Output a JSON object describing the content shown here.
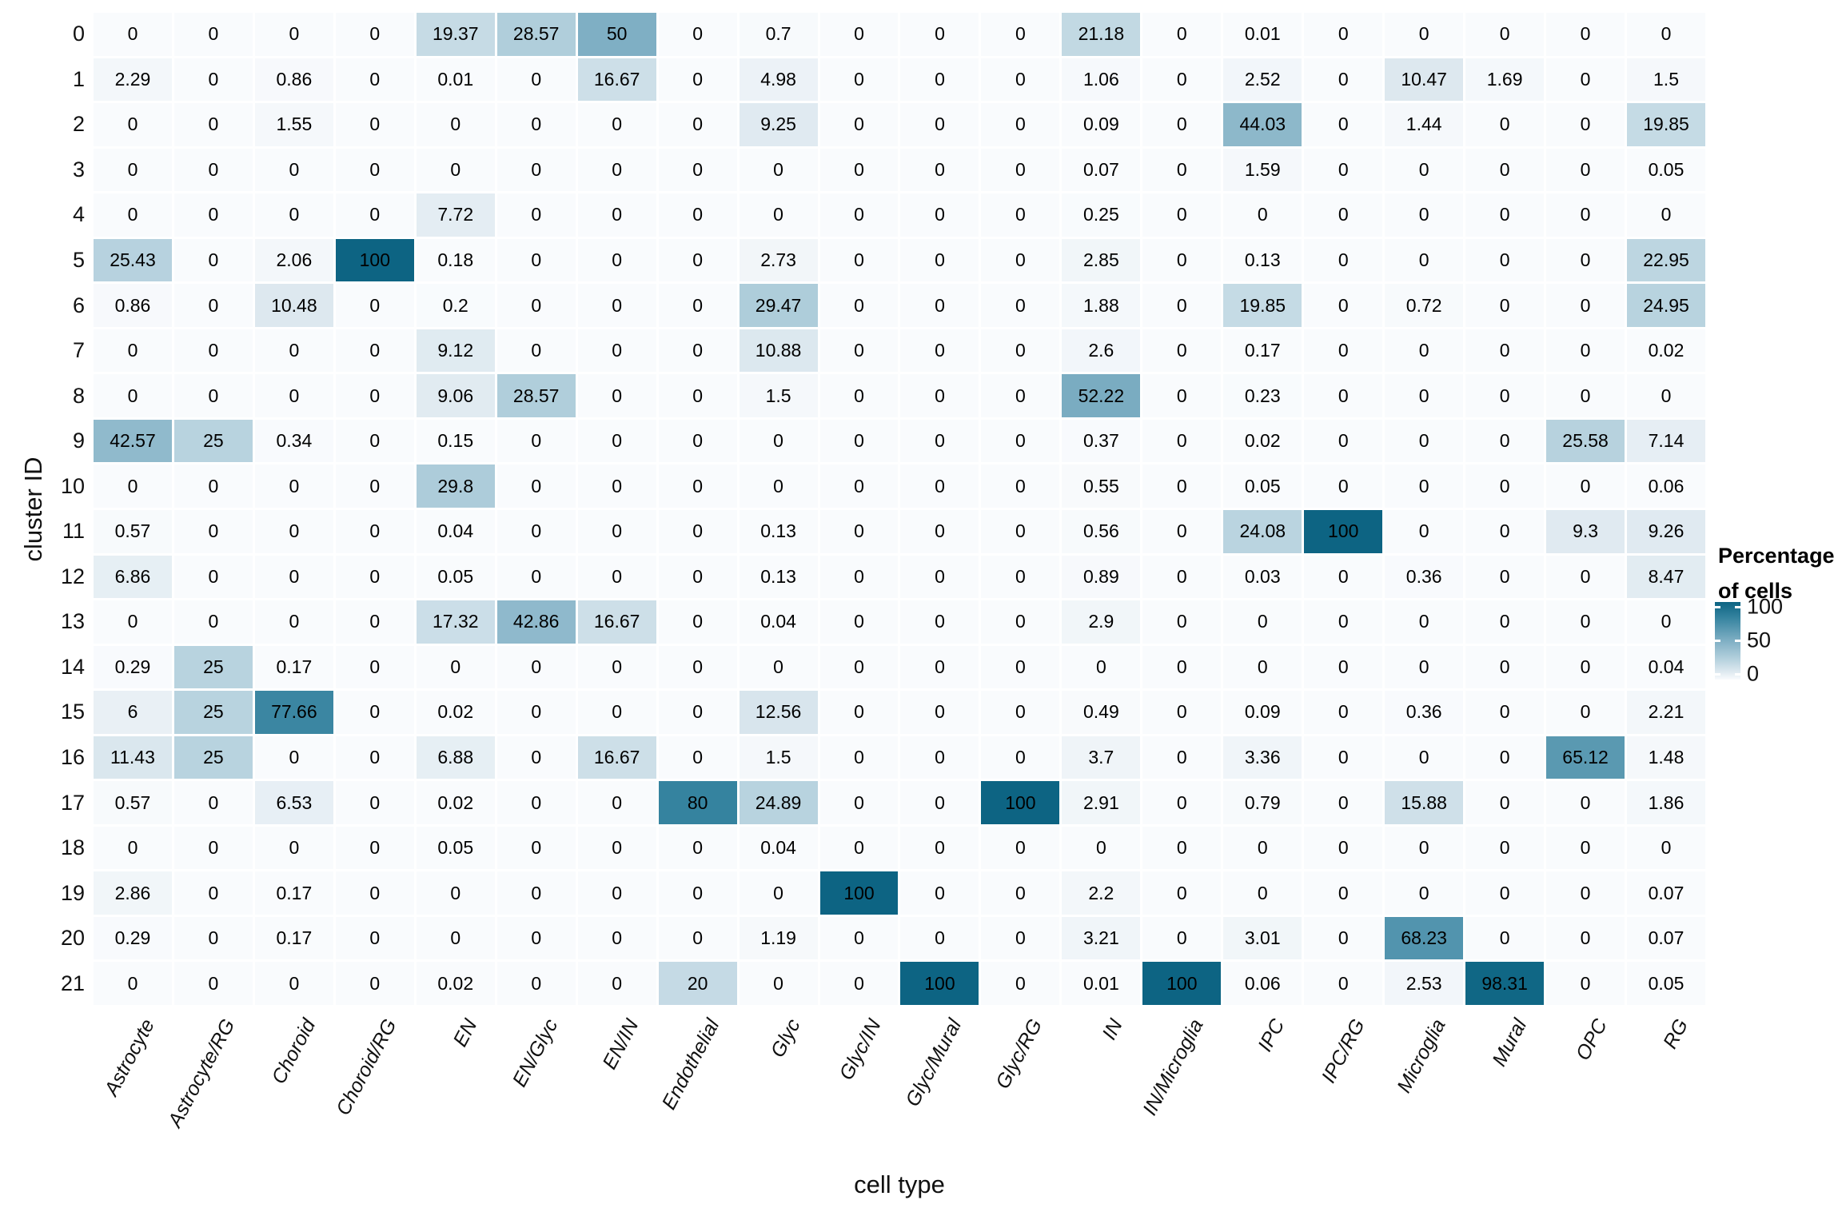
{
  "chart_data": {
    "type": "heatmap",
    "xlabel": "cell type",
    "ylabel": "cluster ID",
    "grid": "off",
    "legend_position": "right",
    "columns": [
      "Astrocyte",
      "Astrocyte/RG",
      "Choroid",
      "Choroid/RG",
      "EN",
      "EN/Glyc",
      "EN/IN",
      "Endothelial",
      "Glyc",
      "Glyc/IN",
      "Glyc/Mural",
      "Glyc/RG",
      "IN",
      "IN/Microglia",
      "IPC",
      "IPC/RG",
      "Microglia",
      "Mural",
      "OPC",
      "RG"
    ],
    "rows": [
      "0",
      "1",
      "2",
      "3",
      "4",
      "5",
      "6",
      "7",
      "8",
      "9",
      "10",
      "11",
      "12",
      "13",
      "14",
      "15",
      "16",
      "17",
      "18",
      "19",
      "20",
      "21"
    ],
    "values": [
      [
        0,
        0,
        0,
        0,
        19.37,
        28.57,
        50,
        0,
        0.7,
        0,
        0,
        0,
        21.18,
        0,
        0.01,
        0,
        0,
        0,
        0,
        0
      ],
      [
        2.29,
        0,
        0.86,
        0,
        0.01,
        0,
        16.67,
        0,
        4.98,
        0,
        0,
        0,
        1.06,
        0,
        2.52,
        0,
        10.47,
        1.69,
        0,
        1.5
      ],
      [
        0,
        0,
        1.55,
        0,
        0,
        0,
        0,
        0,
        9.25,
        0,
        0,
        0,
        0.09,
        0,
        44.03,
        0,
        1.44,
        0,
        0,
        19.85
      ],
      [
        0,
        0,
        0,
        0,
        0,
        0,
        0,
        0,
        0,
        0,
        0,
        0,
        0.07,
        0,
        1.59,
        0,
        0,
        0,
        0,
        0.05
      ],
      [
        0,
        0,
        0,
        0,
        7.72,
        0,
        0,
        0,
        0,
        0,
        0,
        0,
        0.25,
        0,
        0,
        0,
        0,
        0,
        0,
        0
      ],
      [
        25.43,
        0,
        2.06,
        100,
        0.18,
        0,
        0,
        0,
        2.73,
        0,
        0,
        0,
        2.85,
        0,
        0.13,
        0,
        0,
        0,
        0,
        22.95
      ],
      [
        0.86,
        0,
        10.48,
        0,
        0.2,
        0,
        0,
        0,
        29.47,
        0,
        0,
        0,
        1.88,
        0,
        19.85,
        0,
        0.72,
        0,
        0,
        24.95
      ],
      [
        0,
        0,
        0,
        0,
        9.12,
        0,
        0,
        0,
        10.88,
        0,
        0,
        0,
        2.6,
        0,
        0.17,
        0,
        0,
        0,
        0,
        0.02
      ],
      [
        0,
        0,
        0,
        0,
        9.06,
        28.57,
        0,
        0,
        1.5,
        0,
        0,
        0,
        52.22,
        0,
        0.23,
        0,
        0,
        0,
        0,
        0
      ],
      [
        42.57,
        25,
        0.34,
        0,
        0.15,
        0,
        0,
        0,
        0,
        0,
        0,
        0,
        0.37,
        0,
        0.02,
        0,
        0,
        0,
        25.58,
        7.14
      ],
      [
        0,
        0,
        0,
        0,
        29.8,
        0,
        0,
        0,
        0,
        0,
        0,
        0,
        0.55,
        0,
        0.05,
        0,
        0,
        0,
        0,
        0.06
      ],
      [
        0.57,
        0,
        0,
        0,
        0.04,
        0,
        0,
        0,
        0.13,
        0,
        0,
        0,
        0.56,
        0,
        24.08,
        100,
        0,
        0,
        9.3,
        9.26
      ],
      [
        6.86,
        0,
        0,
        0,
        0.05,
        0,
        0,
        0,
        0.13,
        0,
        0,
        0,
        0.89,
        0,
        0.03,
        0,
        0.36,
        0,
        0,
        8.47
      ],
      [
        0,
        0,
        0,
        0,
        17.32,
        42.86,
        16.67,
        0,
        0.04,
        0,
        0,
        0,
        2.9,
        0,
        0,
        0,
        0,
        0,
        0,
        0
      ],
      [
        0.29,
        25,
        0.17,
        0,
        0,
        0,
        0,
        0,
        0,
        0,
        0,
        0,
        0,
        0,
        0,
        0,
        0,
        0,
        0,
        0.04
      ],
      [
        6,
        25,
        77.66,
        0,
        0.02,
        0,
        0,
        0,
        12.56,
        0,
        0,
        0,
        0.49,
        0,
        0.09,
        0,
        0.36,
        0,
        0,
        2.21
      ],
      [
        11.43,
        25,
        0,
        0,
        6.88,
        0,
        16.67,
        0,
        1.5,
        0,
        0,
        0,
        3.7,
        0,
        3.36,
        0,
        0,
        0,
        65.12,
        1.48
      ],
      [
        0.57,
        0,
        6.53,
        0,
        0.02,
        0,
        0,
        80,
        24.89,
        0,
        0,
        100,
        2.91,
        0,
        0.79,
        0,
        15.88,
        0,
        0,
        1.86
      ],
      [
        0,
        0,
        0,
        0,
        0.05,
        0,
        0,
        0,
        0.04,
        0,
        0,
        0,
        0,
        0,
        0,
        0,
        0,
        0,
        0,
        0
      ],
      [
        2.86,
        0,
        0.17,
        0,
        0,
        0,
        0,
        0,
        0,
        100,
        0,
        0,
        2.2,
        0,
        0,
        0,
        0,
        0,
        0,
        0.07
      ],
      [
        0.29,
        0,
        0.17,
        0,
        0,
        0,
        0,
        0,
        1.19,
        0,
        0,
        0,
        3.21,
        0,
        3.01,
        0,
        68.23,
        0,
        0,
        0.07
      ],
      [
        0,
        0,
        0,
        0,
        0.02,
        0,
        0,
        20,
        0,
        0,
        100,
        0,
        0.01,
        100,
        0.06,
        0,
        2.53,
        98.31,
        0,
        0.05
      ]
    ],
    "legend": {
      "title_line1": "Percentage",
      "title_line2": "of cells",
      "ticks": [
        100,
        50,
        0
      ],
      "min": 0,
      "max": 100
    },
    "color_scale": {
      "stops": [
        {
          "v": 0,
          "c": "#f9fbfd"
        },
        {
          "v": 10,
          "c": "#dee9f0"
        },
        {
          "v": 25,
          "c": "#b8d3df"
        },
        {
          "v": 50,
          "c": "#7fafc4"
        },
        {
          "v": 80,
          "c": "#35839f"
        },
        {
          "v": 100,
          "c": "#0d6483"
        }
      ]
    }
  }
}
